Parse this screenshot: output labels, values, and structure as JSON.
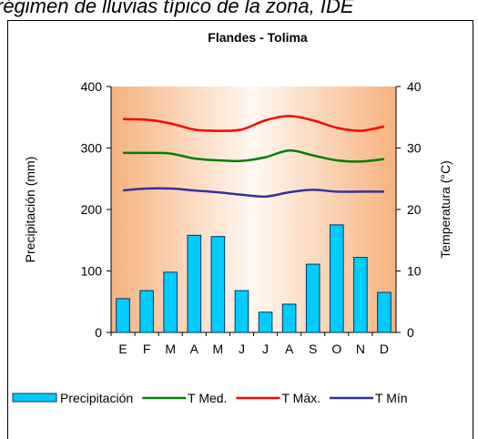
{
  "caption": "régimen de lluvias típico de la zona, IDE",
  "chart_data": {
    "type": "bar",
    "title": "Flandes - Tolima",
    "ylabel": "Precipitación (mm)",
    "y2label": "Temperatura (°C)",
    "categories": [
      "E",
      "F",
      "M",
      "A",
      "M",
      "J",
      "J",
      "A",
      "S",
      "O",
      "N",
      "D"
    ],
    "ylim": [
      0,
      400
    ],
    "yticks": [
      0,
      100,
      200,
      300,
      400
    ],
    "y2lim": [
      0,
      40
    ],
    "y2ticks": [
      0,
      10,
      20,
      30,
      40
    ],
    "legend": "bottom",
    "series": [
      {
        "name": "Precipitación",
        "type": "bar",
        "color": "#00ccff",
        "values": [
          55,
          68,
          98,
          158,
          156,
          68,
          33,
          46,
          111,
          175,
          122,
          65
        ]
      },
      {
        "name": "T Med.",
        "type": "line",
        "axis": "y2",
        "color": "#008000",
        "values": [
          29.2,
          29.2,
          29.1,
          28.3,
          28.0,
          27.9,
          28.5,
          29.6,
          28.8,
          28.0,
          27.8,
          28.2
        ]
      },
      {
        "name": "T Máx.",
        "type": "line",
        "axis": "y2",
        "color": "#ff0000",
        "values": [
          34.7,
          34.6,
          34.0,
          33.0,
          32.8,
          33.0,
          34.5,
          35.2,
          34.5,
          33.3,
          32.8,
          33.5
        ]
      },
      {
        "name": "T Mín",
        "type": "line",
        "axis": "y2",
        "color": "#333399",
        "values": [
          23.1,
          23.4,
          23.4,
          23.1,
          22.8,
          22.4,
          22.1,
          22.8,
          23.2,
          22.9,
          22.9,
          22.9
        ]
      }
    ]
  }
}
